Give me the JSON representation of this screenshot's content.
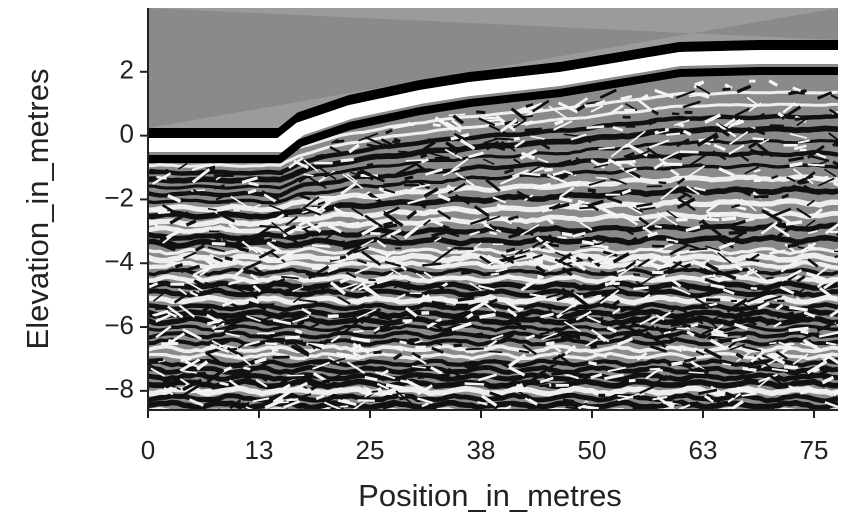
{
  "chart_data": {
    "type": "radargram",
    "x_label": "Position_in_metres",
    "y_label": "Elevation_in_metres",
    "xlim": [
      0,
      77.7
    ],
    "xticks": [
      0,
      {
        "value": 12.5,
        "label": "13"
      },
      25,
      {
        "value": 37.5,
        "label": "38"
      },
      50,
      {
        "value": 62.5,
        "label": "63"
      },
      75
    ],
    "ylim": [
      -8.6,
      4.0
    ],
    "yticks": [
      {
        "value": -8,
        "label": "−8"
      },
      {
        "value": -6,
        "label": "−6"
      },
      {
        "value": -4,
        "label": "−4"
      },
      {
        "value": -2,
        "label": "−2"
      },
      0,
      2
    ],
    "grid": false
  }
}
